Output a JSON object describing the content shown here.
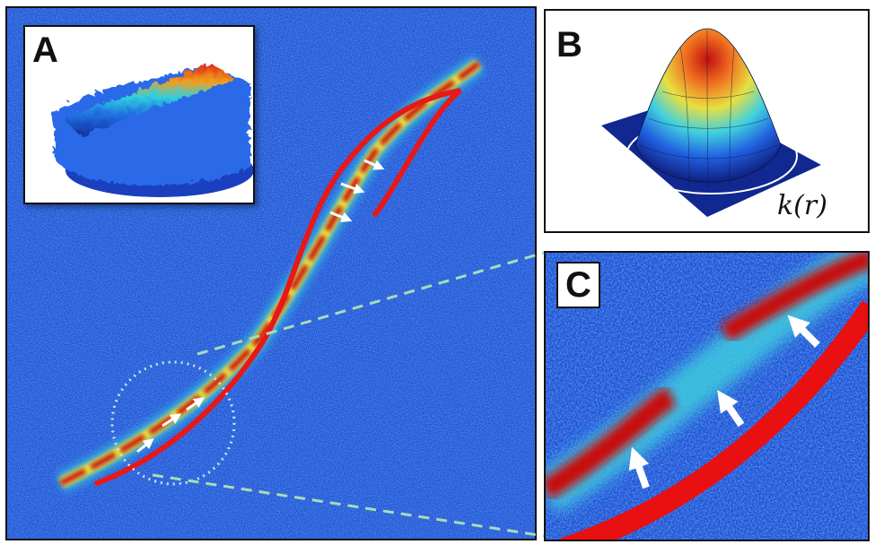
{
  "panels": {
    "a": {
      "letter": "A"
    },
    "b": {
      "letter": "B",
      "formula": "k(r)"
    },
    "c": {
      "letter": "C"
    }
  },
  "colors": {
    "background_blue": "#1e4fd0",
    "ridge_red": "#c81010",
    "ridge_yellow": "#e8e040",
    "model_curve": "#e81818",
    "arrow": "#ffffff",
    "zoom_line": "#a8dcb8"
  },
  "icons": {
    "arrow": "white-arrow-icon",
    "circle": "dotted-circle-icon"
  }
}
